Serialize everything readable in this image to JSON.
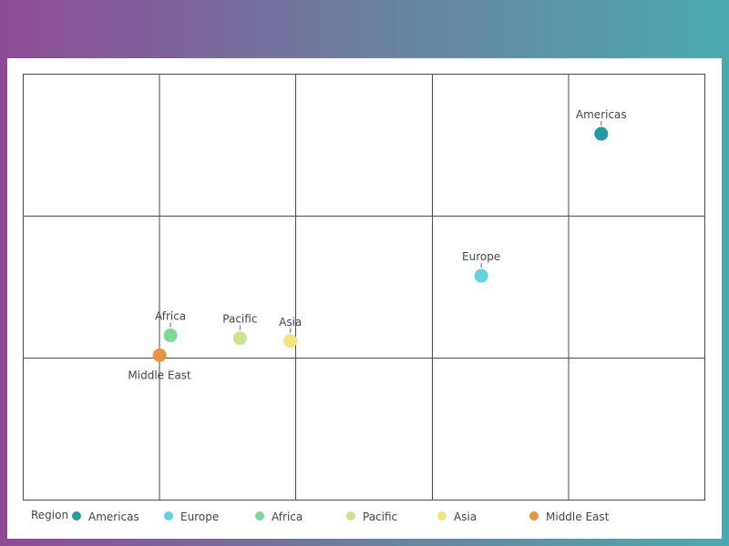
{
  "chart_data": {
    "type": "scatter",
    "title": "",
    "xlabel": "",
    "ylabel": "",
    "xlim": [
      0,
      5
    ],
    "ylim": [
      0,
      3
    ],
    "grid": true,
    "legend": {
      "title": "Region",
      "position": "bottom-left"
    },
    "series": [
      {
        "name": "Americas",
        "color": "#1f9ba3",
        "x": 4.24,
        "y": 2.58,
        "label_pos": "above"
      },
      {
        "name": "Europe",
        "color": "#62d2dc",
        "x": 3.36,
        "y": 1.58,
        "label_pos": "above"
      },
      {
        "name": "Africa",
        "color": "#7fd895",
        "x": 1.08,
        "y": 1.16,
        "label_pos": "above"
      },
      {
        "name": "Pacific",
        "color": "#c9e68e",
        "x": 1.59,
        "y": 1.14,
        "label_pos": "above"
      },
      {
        "name": "Asia",
        "color": "#f3e57e",
        "x": 1.96,
        "y": 1.12,
        "label_pos": "above"
      },
      {
        "name": "Middle East",
        "color": "#e8943c",
        "x": 1.0,
        "y": 1.02,
        "label_pos": "below"
      }
    ]
  }
}
